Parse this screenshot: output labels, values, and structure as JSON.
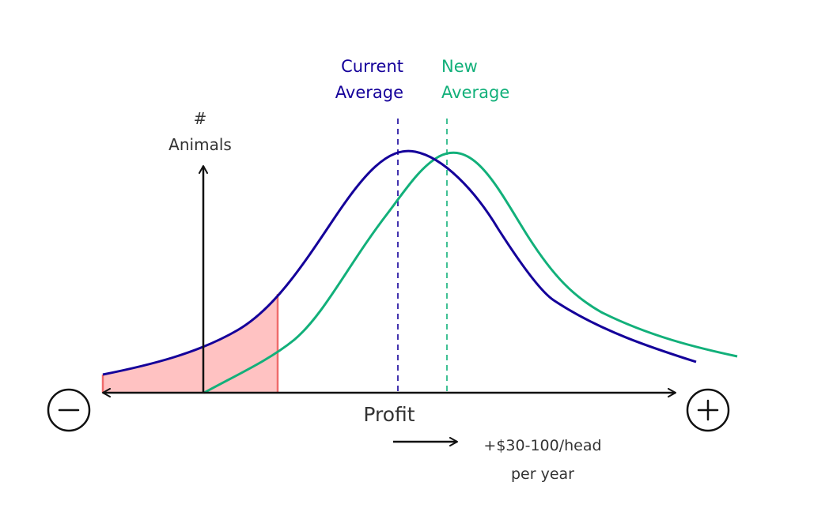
{
  "colors": {
    "current": "#14009a",
    "new": "#12b07a",
    "loss_fill": "#ffc2c2",
    "loss_stroke": "#ef6b6b",
    "axis": "#111111",
    "text": "#333333"
  },
  "labels": {
    "current_line1": "Current",
    "current_line2": "Average",
    "new_line1": "New",
    "new_line2": "Average",
    "yaxis_line1": "#",
    "yaxis_line2": "Animals",
    "xaxis": "Profit",
    "shift_line1": "+$30-100/head",
    "shift_line2": "per year"
  },
  "icons": {
    "minus": "minus-circle-icon",
    "plus": "plus-circle-icon"
  }
}
